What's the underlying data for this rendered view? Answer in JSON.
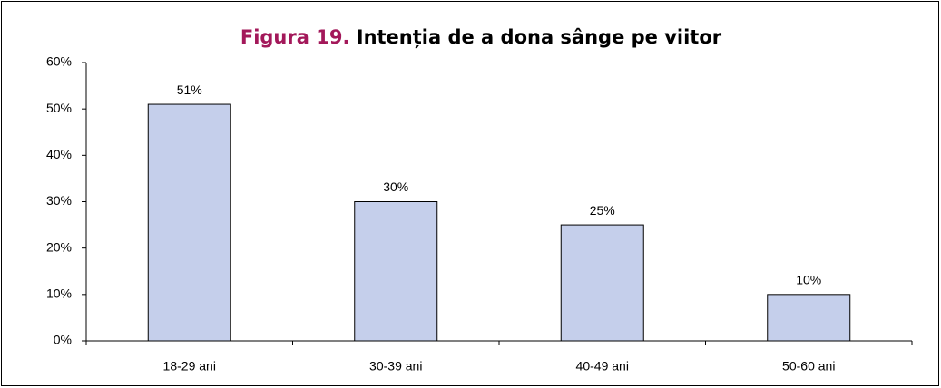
{
  "chart_data": {
    "type": "bar",
    "title_prefix": "Figura 19.",
    "title": "Intenția de a dona sânge pe viitor",
    "categories": [
      "18-29 ani",
      "30-39 ani",
      "40-49 ani",
      "50-60 ani"
    ],
    "values": [
      51,
      30,
      25,
      10
    ],
    "value_labels": [
      "51%",
      "30%",
      "25%",
      "10%"
    ],
    "color": "#c5cfeb",
    "title_prefix_color": "#a3185a",
    "ylim": [
      0,
      60
    ],
    "yticks": [
      {
        "value": 0,
        "label": "0%"
      },
      {
        "value": 10,
        "label": "10%"
      },
      {
        "value": 20,
        "label": "20%"
      },
      {
        "value": 30,
        "label": "30%"
      },
      {
        "value": 40,
        "label": "40%"
      },
      {
        "value": 50,
        "label": "50%"
      },
      {
        "value": 60,
        "label": "60%"
      }
    ],
    "grid": false
  }
}
